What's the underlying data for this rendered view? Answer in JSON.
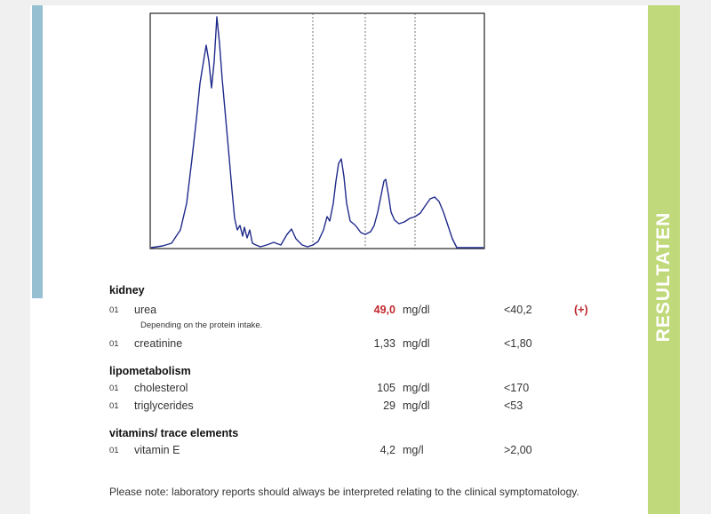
{
  "side_label": "RESULTATEN",
  "colors": {
    "left_bar": "#96bfd2",
    "right_bar": "#c0d97a",
    "high_value": "#c0282d",
    "curve": "#1f2a8a"
  },
  "sections": [
    {
      "title": "kidney",
      "rows": [
        {
          "code": "01",
          "name": "urea",
          "value": "49,0",
          "unit": "mg/dl",
          "ref": "<40,2",
          "flag": "(+)",
          "note": "Depending on the protein intake."
        },
        {
          "code": "01",
          "name": "creatinine",
          "value": "1,33",
          "unit": "mg/dl",
          "ref": "<1,80",
          "flag": ""
        }
      ]
    },
    {
      "title": "lipometabolism",
      "rows": [
        {
          "code": "01",
          "name": "cholesterol",
          "value": "105",
          "unit": "mg/dl",
          "ref": "<170",
          "flag": ""
        },
        {
          "code": "01",
          "name": "triglycerides",
          "value": "29",
          "unit": "mg/dl",
          "ref": "<53",
          "flag": ""
        }
      ]
    },
    {
      "title": "vitamins/ trace elements",
      "rows": [
        {
          "code": "01",
          "name": "vitamin E",
          "value": "4,2",
          "unit": "mg/l",
          "ref": ">2,00",
          "flag": ""
        }
      ]
    }
  ],
  "footer_note": "Please note: laboratory reports should always be interpreted relating to the clinical symptomatology."
}
